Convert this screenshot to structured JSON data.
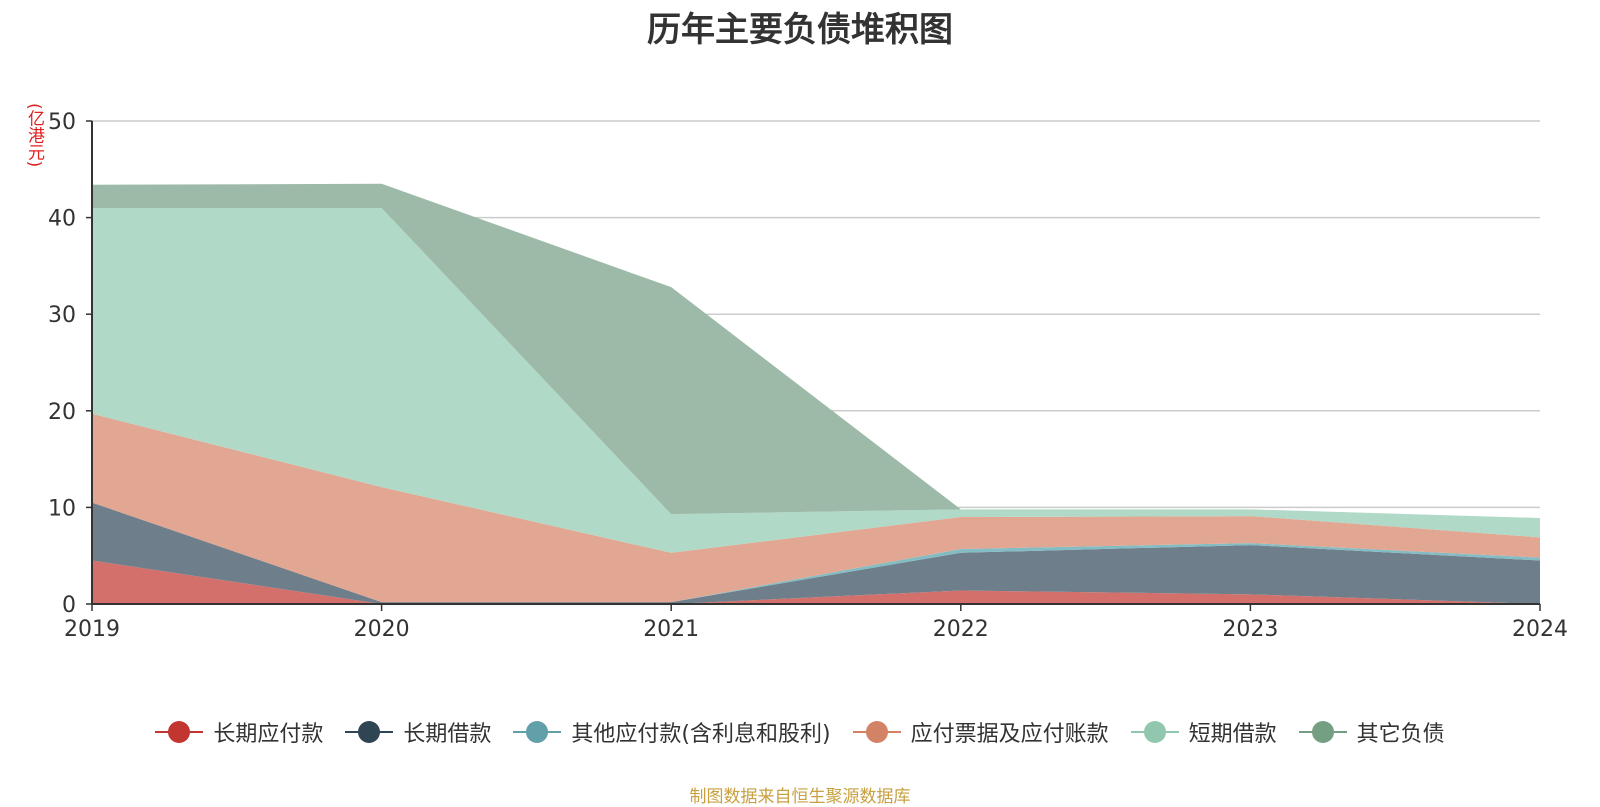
{
  "chart_data": {
    "type": "area",
    "stacked": true,
    "title": "历年主要负债堆积图",
    "unit_label": "(亿港元)",
    "x": [
      "2019",
      "2020",
      "2021",
      "2022",
      "2023",
      "2024"
    ],
    "ylim": [
      0,
      50
    ],
    "yticks": [
      "0",
      "10",
      "20",
      "30",
      "40",
      "50"
    ],
    "grid": true,
    "legend_position": "bottom",
    "series": [
      {
        "name": "长期应付款",
        "color": "#c23531",
        "fill": "#d4706c",
        "values": [
          4.5,
          0,
          0,
          1.4,
          1.0,
          0
        ]
      },
      {
        "name": "长期借款",
        "color": "#2f4554",
        "fill": "#6e7e8a",
        "values": [
          6.0,
          0.2,
          0.2,
          3.9,
          5.1,
          4.5
        ]
      },
      {
        "name": "其他应付款(含利息和股利)",
        "color": "#61a0a8",
        "fill": "#84bcc3",
        "values": [
          0,
          0,
          0,
          0.4,
          0.2,
          0.3
        ]
      },
      {
        "name": "应付票据及应付账款",
        "color": "#d48265",
        "fill": "#e1a792",
        "values": [
          9.2,
          11.9,
          5.1,
          3.3,
          2.8,
          2.1
        ]
      },
      {
        "name": "短期借款",
        "color": "#91c7ae",
        "fill": "#b0d9c7",
        "values": [
          21.3,
          28.9,
          4.0,
          0.8,
          0.7,
          2.0
        ]
      },
      {
        "name": "其它负债",
        "color": "#749f83",
        "fill": "#9db9a7",
        "values": [
          2.4,
          2.5,
          23.5,
          0,
          0,
          0
        ]
      }
    ]
  },
  "source": "制图数据来自恒生聚源数据库"
}
